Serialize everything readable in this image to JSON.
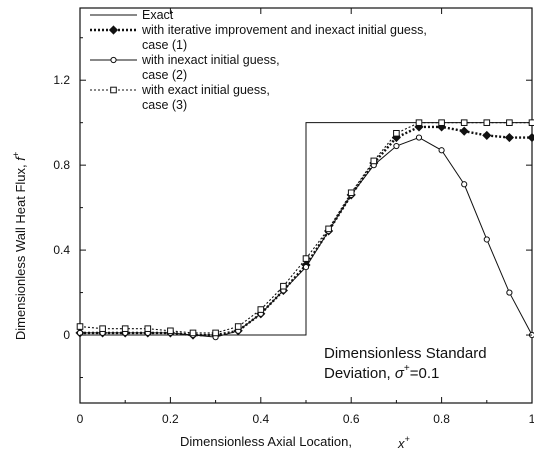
{
  "chart_data": {
    "type": "line",
    "xlabel": "Dimensionless Axial Location,",
    "xlabel_symbol": "x",
    "xlabel_sup": "+",
    "ylabel": "Dimensionless Wall Heat Flux,",
    "ylabel_symbol": "f",
    "ylabel_sup": "+",
    "xlim": [
      0,
      1
    ],
    "ylim": [
      -0.32,
      1.54
    ],
    "x_ticks": [
      "0",
      "0.2",
      "0.4",
      "0.6",
      "0.8",
      "1"
    ],
    "x_tick_values": [
      0,
      0.2,
      0.4,
      0.6,
      0.8,
      1
    ],
    "y_ticks": [
      "0",
      "0.4",
      "0.8",
      "1.2"
    ],
    "y_tick_values": [
      0,
      0.4,
      0.8,
      1.2
    ],
    "grid": false,
    "legend_position": "top-left",
    "annotation": {
      "line1": "Dimensionless Standard",
      "line2": "Deviation,",
      "symbol": "σ",
      "sup": "+",
      "value": "=0.1"
    },
    "series": [
      {
        "name": "Exact",
        "legend_lines": [
          "Exact"
        ],
        "style": "solid",
        "marker": "none",
        "x": [
          0,
          0.5,
          0.5,
          1
        ],
        "y": [
          0,
          0,
          1,
          1
        ]
      },
      {
        "name": "with iterative improvement and inexact initial guess, case (1)",
        "legend_lines": [
          "with iterative improvement and inexact initial guess,",
          "case (1)"
        ],
        "style": "dotted-bold",
        "marker": "filled-diamond",
        "x": [
          0,
          0.05,
          0.1,
          0.15,
          0.2,
          0.25,
          0.3,
          0.35,
          0.4,
          0.45,
          0.5,
          0.55,
          0.6,
          0.65,
          0.7,
          0.75,
          0.8,
          0.85,
          0.9,
          0.95,
          1
        ],
        "y": [
          0.01,
          0.01,
          0.01,
          0.01,
          0.01,
          0.0,
          0.0,
          0.02,
          0.1,
          0.21,
          0.33,
          0.49,
          0.66,
          0.81,
          0.93,
          0.98,
          0.98,
          0.96,
          0.94,
          0.93,
          0.93
        ]
      },
      {
        "name": "with inexact initial guess, case (2)",
        "legend_lines": [
          "with inexact initial guess,",
          "case (2)"
        ],
        "style": "solid",
        "marker": "open-circle",
        "x": [
          0,
          0.05,
          0.1,
          0.15,
          0.2,
          0.25,
          0.3,
          0.35,
          0.4,
          0.45,
          0.5,
          0.55,
          0.6,
          0.65,
          0.7,
          0.75,
          0.8,
          0.85,
          0.9,
          0.95,
          1
        ],
        "y": [
          0.01,
          0.01,
          0.01,
          0.01,
          0.01,
          0.0,
          -0.01,
          0.02,
          0.1,
          0.21,
          0.32,
          0.49,
          0.66,
          0.8,
          0.89,
          0.93,
          0.87,
          0.71,
          0.45,
          0.2,
          0.0
        ]
      },
      {
        "name": "with exact initial guess, case (3)",
        "legend_lines": [
          "with exact initial guess,",
          "case (3)"
        ],
        "style": "dotted",
        "marker": "open-square",
        "x": [
          0,
          0.05,
          0.1,
          0.15,
          0.2,
          0.25,
          0.3,
          0.35,
          0.4,
          0.45,
          0.5,
          0.55,
          0.6,
          0.65,
          0.7,
          0.75,
          0.8,
          0.85,
          0.9,
          0.95,
          1
        ],
        "y": [
          0.04,
          0.03,
          0.03,
          0.03,
          0.02,
          0.01,
          0.01,
          0.04,
          0.12,
          0.23,
          0.36,
          0.5,
          0.67,
          0.82,
          0.95,
          1.0,
          1.0,
          1.0,
          1.0,
          1.0,
          1.0
        ]
      }
    ]
  }
}
